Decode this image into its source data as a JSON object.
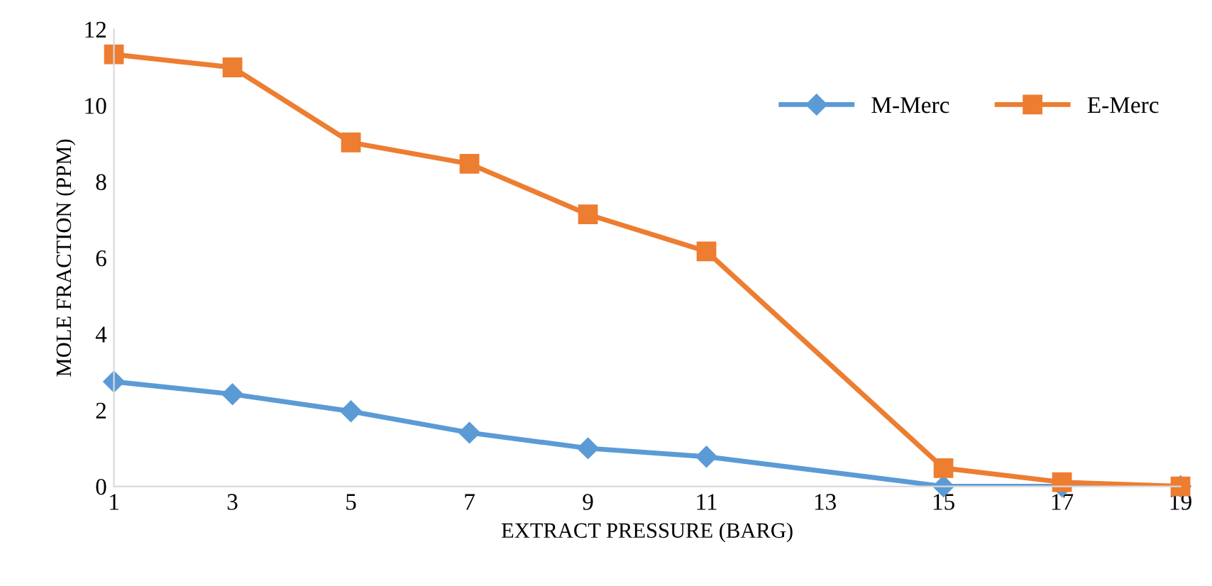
{
  "chart_data": {
    "type": "line",
    "xlabel": "EXTRACT PRESSURE (BARG)",
    "ylabel": "MOLE FRACTION (PPM)",
    "x": [
      1,
      3,
      5,
      7,
      9,
      11,
      15,
      17,
      19
    ],
    "series": [
      {
        "name": "M-Merc",
        "color": "#5b9bd5",
        "marker": "diamond",
        "values": [
          2.75,
          2.42,
          1.97,
          1.41,
          1.0,
          0.78,
          0,
          0,
          0
        ]
      },
      {
        "name": "E-Merc",
        "color": "#ed7d31",
        "marker": "square",
        "values": [
          11.34,
          11.0,
          9.03,
          8.47,
          7.14,
          6.17,
          0.48,
          0.11,
          0
        ]
      }
    ],
    "xlim": [
      1,
      19
    ],
    "xticks": [
      1,
      3,
      5,
      7,
      9,
      11,
      13,
      15,
      17,
      19
    ],
    "ylim": [
      0,
      12
    ],
    "yticks": [
      0,
      2,
      4,
      6,
      8,
      10,
      12
    ],
    "grid": false,
    "legend": "top right",
    "line_style": "solid"
  }
}
